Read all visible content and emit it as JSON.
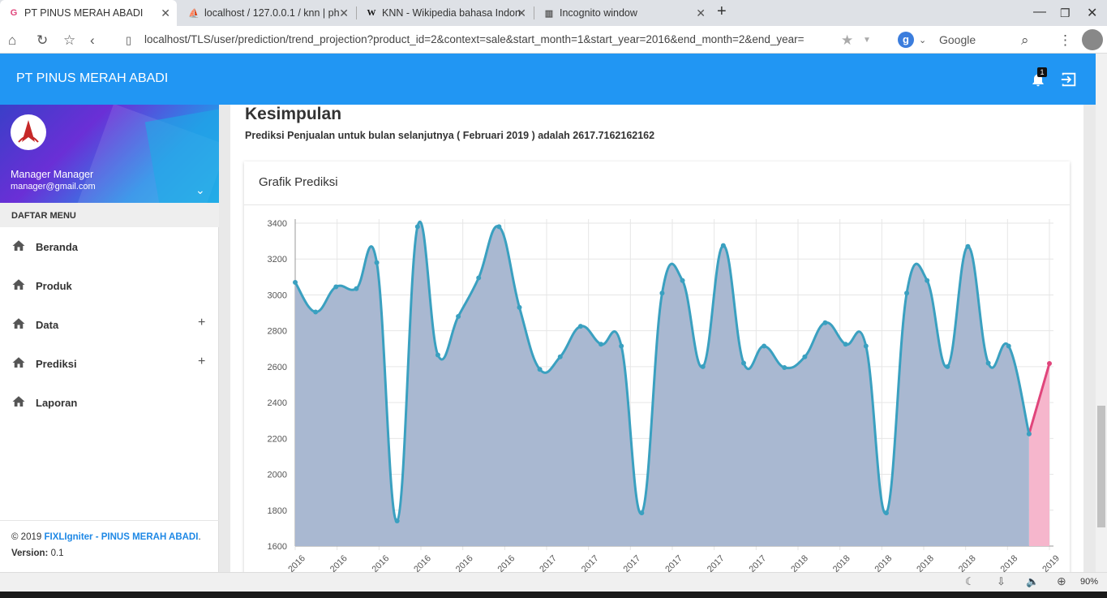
{
  "browser": {
    "tabs": [
      {
        "title": "PT PINUS MERAH ABADI",
        "active": true,
        "icon": "c-app-icon"
      },
      {
        "title": "localhost / 127.0.0.1 / knn | ph",
        "active": false,
        "icon": "phpmyadmin-icon"
      },
      {
        "title": "KNN - Wikipedia bahasa Indon",
        "active": false,
        "icon": "wikipedia-icon"
      },
      {
        "title": "Incognito window",
        "active": false,
        "icon": "incognito-icon"
      }
    ],
    "url": "localhost/TLS/user/prediction/trend_projection?product_id=2&context=sale&start_month=1&start_year=2016&end_month=2&end_year=",
    "search_engine": "Google",
    "zoom": "90%"
  },
  "app": {
    "title": "PT PINUS MERAH ABADI",
    "notification_count": "1"
  },
  "user": {
    "name": "Manager Manager",
    "email": "manager@gmail.com"
  },
  "menu": {
    "header": "DAFTAR MENU",
    "items": [
      {
        "label": "Beranda",
        "expandable": false
      },
      {
        "label": "Produk",
        "expandable": false
      },
      {
        "label": "Data",
        "expandable": true
      },
      {
        "label": "Prediksi",
        "expandable": true
      },
      {
        "label": "Laporan",
        "expandable": false
      }
    ]
  },
  "footer": {
    "copyright_prefix": "© 2019",
    "brand": "FIXLIgniter - PINUS MERAH ABADI",
    "period": ".",
    "version_label": "Version:",
    "version": "0.1"
  },
  "content": {
    "heading": "Kesimpulan",
    "prediction_text": "Prediksi Penjualan untuk bulan selanjutnya ( Februari 2019 ) adalah 2617.7162162162",
    "card_title": "Grafik Prediksi"
  },
  "colors": {
    "accent": "#2196f3",
    "series_actual_line": "#3aa0c0",
    "series_actual_fill": "#a9b8d1",
    "series_prediction_line": "#e0457b",
    "series_prediction_fill": "#f6b6cc"
  },
  "chart_data": {
    "type": "area",
    "x": [
      "2016",
      "2016",
      "2016",
      "2016",
      "2016",
      "2016",
      "2016",
      "2016",
      "2016",
      "2016",
      "2016",
      "2016",
      "2017",
      "2017",
      "2017",
      "2017",
      "2017",
      "2017",
      "2017",
      "2017",
      "2017",
      "2017",
      "2017",
      "2017",
      "2018",
      "2018",
      "2018",
      "2018",
      "2018",
      "2018",
      "2018",
      "2018",
      "2018",
      "2018",
      "2018",
      "2018",
      "2019",
      "2019"
    ],
    "tick_labels": [
      "2016",
      "2016",
      "2016",
      "2016",
      "2016",
      "2016",
      "2017",
      "2017",
      "2017",
      "2017",
      "2017",
      "2017",
      "2018",
      "2018",
      "2018",
      "2018",
      "2018",
      "2018",
      "2019"
    ],
    "series": [
      {
        "values": [
          3070,
          2905,
          3045,
          3035,
          3180,
          1740,
          3380,
          2665,
          2880,
          3095,
          3380,
          2930,
          2585,
          2655,
          2825,
          2725,
          2715,
          1785,
          3010,
          3080,
          2600,
          3275,
          2620,
          2715,
          2595,
          2655,
          2845,
          2725,
          2715,
          1785,
          3010,
          3080,
          2600,
          3270,
          2620,
          2715,
          2225,
          null
        ]
      },
      {
        "values": [
          null,
          null,
          null,
          null,
          null,
          null,
          null,
          null,
          null,
          null,
          null,
          null,
          null,
          null,
          null,
          null,
          null,
          null,
          null,
          null,
          null,
          null,
          null,
          null,
          null,
          null,
          null,
          null,
          null,
          null,
          null,
          null,
          null,
          null,
          null,
          null,
          2225,
          2617.72
        ]
      }
    ],
    "ylim": [
      1600,
      3400
    ],
    "yticks": [
      1600,
      1800,
      2000,
      2200,
      2400,
      2600,
      2800,
      3000,
      3200,
      3400
    ],
    "grid": true
  }
}
